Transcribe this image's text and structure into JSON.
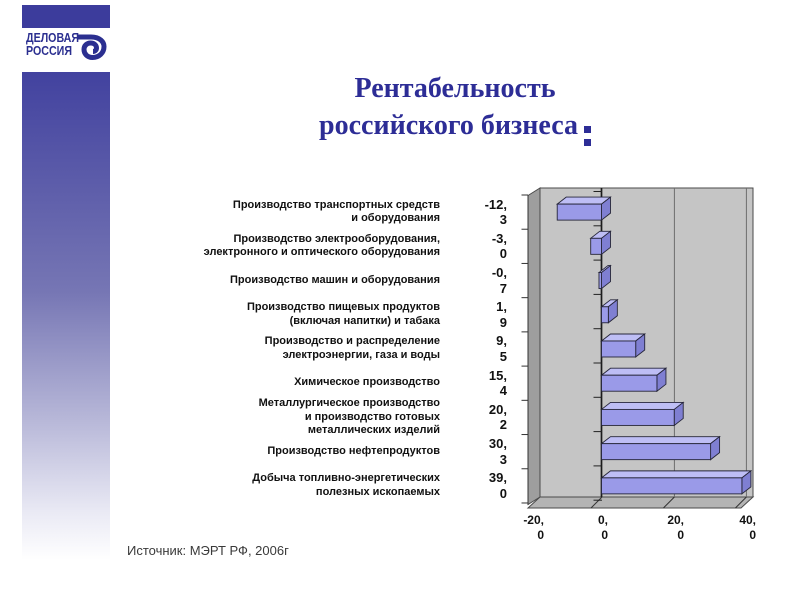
{
  "slide": {
    "title_line1": "Рентабельность",
    "title_line2": "российского бизнеса",
    "source": "Источник: МЭРТ РФ, 2006г"
  },
  "logo": {
    "text_line1": "ДЕЛОВАЯ",
    "text_line2": "РОССИЯ",
    "icon": "delovaya-rossiya-d-icon",
    "color": "#2b2f90"
  },
  "chart_data": {
    "type": "bar",
    "orientation": "horizontal",
    "style": "3d",
    "title": "Рентабельность российского бизнеса",
    "categories": [
      "Производство транспортных средств и оборудования",
      "Производство электрооборудования, электронного и оптического оборудования",
      "Производство машин и оборудования",
      "Производство пищевых продуктов (включая напитки) и табака",
      "Производство и распределение электроэнергии, газа и воды",
      "Химическое производство",
      "Металлургическое производство и производство готовых металлических изделий",
      "Производство нефтепродуктов",
      "Добыча топливно-энергетических полезных ископаемых"
    ],
    "category_lines": [
      [
        "Производство транспортных средств",
        "и оборудования"
      ],
      [
        "Производство электрооборудования,",
        "электронного и оптического оборудования"
      ],
      [
        "Производство машин и оборудования"
      ],
      [
        "Производство пищевых продуктов",
        "(включая напитки) и табака"
      ],
      [
        "Производство и распределение",
        "электроэнергии, газа и воды"
      ],
      [
        "Химическое производство"
      ],
      [
        "Металлургическое производство",
        "и производство готовых",
        "металлических изделий"
      ],
      [
        "Производство нефтепродуктов"
      ],
      [
        "Добыча топливно-энергетических",
        "полезных ископаемых"
      ]
    ],
    "values": [
      -12.3,
      -3.0,
      -0.7,
      1.9,
      9.5,
      15.4,
      20.2,
      30.3,
      39.0
    ],
    "value_labels": [
      "-12,3",
      "-3,0",
      "-0,7",
      "1,9",
      "9,5",
      "15,4",
      "20,2",
      "30,3",
      "39,0"
    ],
    "x_ticks": [
      "-20,0",
      "0,0",
      "20,0",
      "40,0"
    ],
    "x_tick_values": [
      -20,
      0,
      20,
      40
    ],
    "xlim": [
      -20,
      42
    ],
    "grid": true,
    "legend": false,
    "bar_color": "#9a9ae8",
    "bar_top_color": "#bebef5",
    "bar_end_color": "#7f7fd2",
    "wall_color": "#c5c5c5",
    "side_wall_color": "#9e9e9e",
    "floor_color": "#b4b4b4"
  }
}
